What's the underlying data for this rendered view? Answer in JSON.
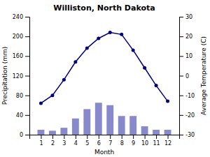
{
  "chart_data": {
    "type": "bar",
    "title": "Williston, North Dakota",
    "xlabel": "Month",
    "ylabel": "Precipitation (mm)",
    "y2label": "Average Temperature (C)",
    "x": [
      1,
      2,
      3,
      4,
      5,
      6,
      7,
      8,
      9,
      10,
      11,
      12
    ],
    "xlim": [
      0,
      13
    ],
    "xticks": [
      1,
      2,
      3,
      4,
      5,
      6,
      7,
      8,
      9,
      10,
      11,
      12
    ],
    "ylim": [
      0,
      240
    ],
    "yticks": [
      0,
      40,
      80,
      120,
      160,
      200,
      240
    ],
    "y2lim": [
      -30,
      30
    ],
    "y2ticks": [
      -30,
      -20,
      -10,
      0,
      10,
      20,
      30
    ],
    "grid": false,
    "series": [
      {
        "type": "bar",
        "color": "#8888cc",
        "values": [
          10,
          8,
          14,
          33,
          52,
          65,
          60,
          38,
          38,
          17,
          10,
          10
        ]
      },
      {
        "type": "line",
        "axis": "y2",
        "color": "#000080",
        "marker": "circle",
        "line_style": "solid",
        "values": [
          -14,
          -10,
          -2,
          7,
          14,
          19,
          22,
          21,
          13,
          4,
          -5,
          -13
        ]
      }
    ]
  }
}
